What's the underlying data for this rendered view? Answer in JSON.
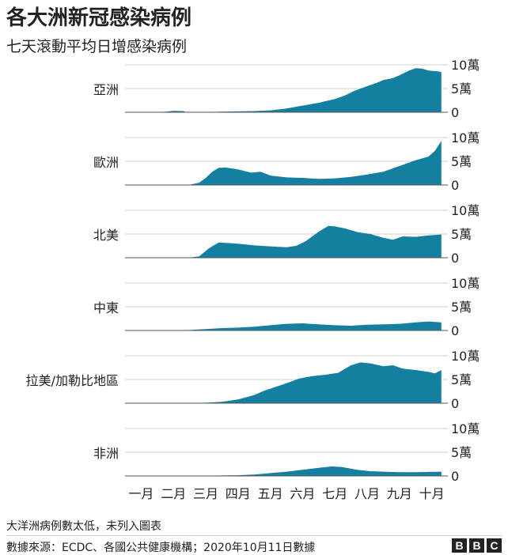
{
  "title": "各大洲新冠感染病例",
  "subtitle": "七天滾動平均日增感染病例",
  "footnote": "大洋洲病例數太低，未列入圖表",
  "source": "數據來源：ECDC、各國公共健康機構；2020年10月11日數據",
  "logo_letters": [
    "B",
    "B",
    "C"
  ],
  "colors": {
    "area": "#1380a1",
    "grid": "#cccccc",
    "text": "#222222"
  },
  "chart_data": {
    "type": "area",
    "x_labels": [
      "一月",
      "二月",
      "三月",
      "四月",
      "五月",
      "六月",
      "七月",
      "八月",
      "九月",
      "十月"
    ],
    "y_ticks": [
      0,
      50000,
      100000
    ],
    "y_tick_labels": [
      "0",
      "5萬",
      "10萬"
    ],
    "ylim": [
      0,
      100000
    ],
    "series": [
      {
        "name": "亞洲",
        "points": [
          [
            0,
            0
          ],
          [
            1,
            200
          ],
          [
            1.3,
            1500
          ],
          [
            1.5,
            3000
          ],
          [
            1.8,
            2500
          ],
          [
            1.9,
            500
          ],
          [
            2.5,
            600
          ],
          [
            3,
            1200
          ],
          [
            4,
            2500
          ],
          [
            4.5,
            4000
          ],
          [
            5,
            8000
          ],
          [
            5.5,
            14000
          ],
          [
            6,
            20000
          ],
          [
            6.5,
            28000
          ],
          [
            6.8,
            35000
          ],
          [
            7.1,
            45000
          ],
          [
            7.5,
            55000
          ],
          [
            7.8,
            62000
          ],
          [
            8.0,
            68000
          ],
          [
            8.3,
            72000
          ],
          [
            8.5,
            78000
          ],
          [
            8.8,
            88000
          ],
          [
            9.0,
            93000
          ],
          [
            9.2,
            92000
          ],
          [
            9.4,
            88000
          ],
          [
            9.7,
            86000
          ],
          [
            9.8,
            85000
          ]
        ]
      },
      {
        "name": "歐洲",
        "points": [
          [
            0,
            0
          ],
          [
            1,
            100
          ],
          [
            2,
            500
          ],
          [
            2.3,
            5000
          ],
          [
            2.5,
            15000
          ],
          [
            2.7,
            28000
          ],
          [
            2.9,
            36000
          ],
          [
            3.1,
            37000
          ],
          [
            3.5,
            33000
          ],
          [
            3.9,
            26000
          ],
          [
            4.2,
            28000
          ],
          [
            4.5,
            20000
          ],
          [
            5,
            16000
          ],
          [
            5.5,
            15000
          ],
          [
            6,
            13000
          ],
          [
            6.5,
            14000
          ],
          [
            7,
            17000
          ],
          [
            7.5,
            22000
          ],
          [
            8,
            28000
          ],
          [
            8.5,
            40000
          ],
          [
            9.0,
            52000
          ],
          [
            9.4,
            60000
          ],
          [
            9.6,
            72000
          ],
          [
            9.8,
            93000
          ]
        ]
      },
      {
        "name": "北美",
        "points": [
          [
            0,
            0
          ],
          [
            1,
            100
          ],
          [
            2,
            500
          ],
          [
            2.3,
            3000
          ],
          [
            2.6,
            20000
          ],
          [
            2.9,
            32000
          ],
          [
            3.2,
            31000
          ],
          [
            3.6,
            29000
          ],
          [
            4,
            26000
          ],
          [
            4.5,
            24000
          ],
          [
            5,
            22000
          ],
          [
            5.3,
            25000
          ],
          [
            5.6,
            35000
          ],
          [
            6.0,
            55000
          ],
          [
            6.3,
            67000
          ],
          [
            6.5,
            66000
          ],
          [
            6.8,
            62000
          ],
          [
            7.2,
            54000
          ],
          [
            7.6,
            50000
          ],
          [
            8,
            42000
          ],
          [
            8.3,
            38000
          ],
          [
            8.6,
            45000
          ],
          [
            9,
            44000
          ],
          [
            9.4,
            47000
          ],
          [
            9.8,
            49000
          ]
        ]
      },
      {
        "name": "中東",
        "points": [
          [
            0,
            0
          ],
          [
            1,
            100
          ],
          [
            2,
            1000
          ],
          [
            2.5,
            3000
          ],
          [
            3,
            5000
          ],
          [
            3.5,
            6000
          ],
          [
            4,
            8000
          ],
          [
            4.5,
            11000
          ],
          [
            5,
            14000
          ],
          [
            5.5,
            15000
          ],
          [
            6,
            13000
          ],
          [
            6.5,
            11000
          ],
          [
            7,
            10000
          ],
          [
            7.5,
            12000
          ],
          [
            8,
            13000
          ],
          [
            8.5,
            14000
          ],
          [
            9,
            17000
          ],
          [
            9.4,
            19000
          ],
          [
            9.8,
            17000
          ]
        ]
      },
      {
        "name": "拉美/加勒比地區",
        "points": [
          [
            0,
            0
          ],
          [
            2,
            100
          ],
          [
            2.5,
            1000
          ],
          [
            3,
            3000
          ],
          [
            3.5,
            8000
          ],
          [
            4,
            17000
          ],
          [
            4.3,
            26000
          ],
          [
            4.6,
            33000
          ],
          [
            5,
            42000
          ],
          [
            5.4,
            52000
          ],
          [
            5.8,
            57000
          ],
          [
            6.2,
            60000
          ],
          [
            6.6,
            64000
          ],
          [
            7.0,
            80000
          ],
          [
            7.3,
            86000
          ],
          [
            7.6,
            84000
          ],
          [
            8,
            78000
          ],
          [
            8.3,
            80000
          ],
          [
            8.6,
            73000
          ],
          [
            9.0,
            70000
          ],
          [
            9.4,
            66000
          ],
          [
            9.6,
            63000
          ],
          [
            9.8,
            70000
          ]
        ]
      },
      {
        "name": "非洲",
        "points": [
          [
            0,
            0
          ],
          [
            2,
            100
          ],
          [
            2.5,
            500
          ],
          [
            3,
            1000
          ],
          [
            3.5,
            1500
          ],
          [
            4,
            3000
          ],
          [
            4.5,
            6000
          ],
          [
            5,
            9000
          ],
          [
            5.5,
            13000
          ],
          [
            6,
            17000
          ],
          [
            6.4,
            20000
          ],
          [
            6.7,
            19000
          ],
          [
            7.2,
            13000
          ],
          [
            7.6,
            10000
          ],
          [
            8,
            9000
          ],
          [
            8.5,
            8000
          ],
          [
            9,
            8000
          ],
          [
            9.8,
            9000
          ]
        ]
      }
    ]
  }
}
